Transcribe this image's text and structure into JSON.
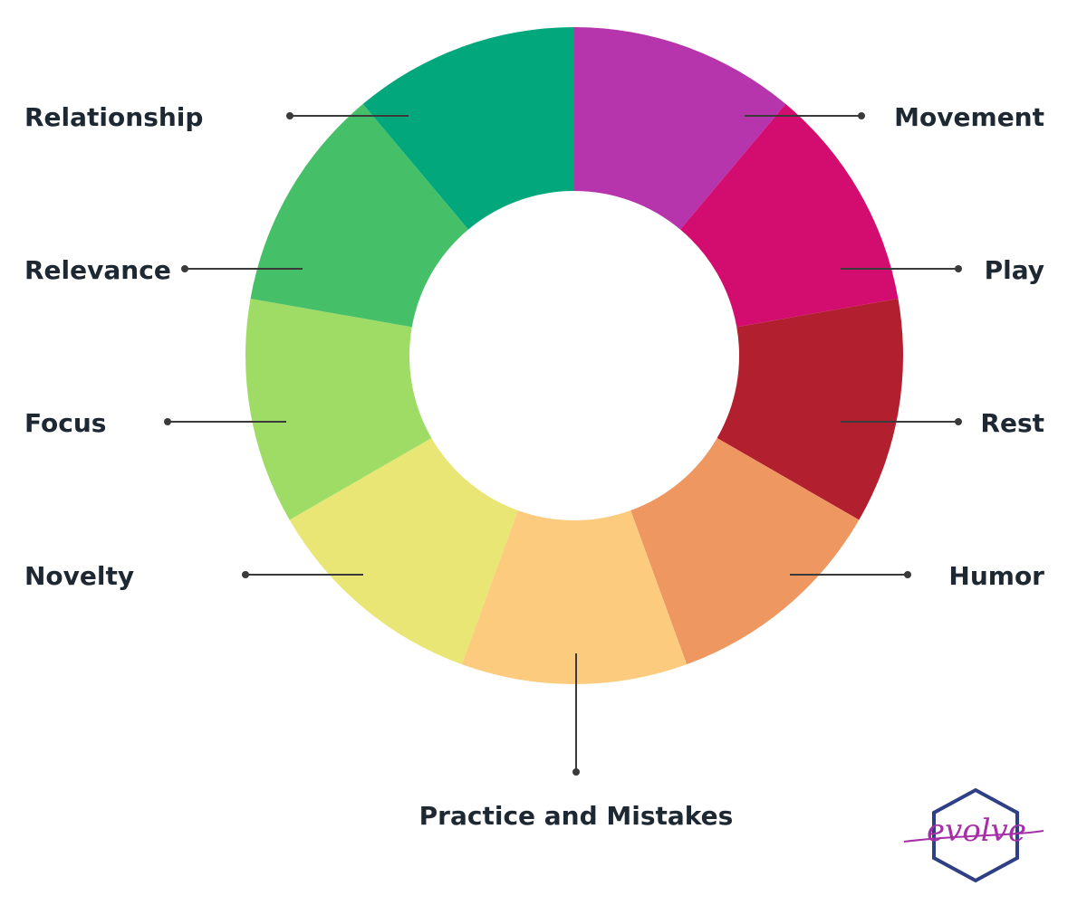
{
  "segments": [
    {
      "label": "Movement",
      "color": "#B634AC",
      "side": "right"
    },
    {
      "label": "Play",
      "color": "#D30D6F",
      "side": "right"
    },
    {
      "label": "Rest",
      "color": "#B21F2F",
      "side": "right"
    },
    {
      "label": "Humor",
      "color": "#EE9760",
      "side": "right"
    },
    {
      "label": "Practice and Mistakes",
      "color": "#FDCB7E",
      "side": "bottom"
    },
    {
      "label": "Novelty",
      "color": "#E9E675",
      "side": "left"
    },
    {
      "label": "Focus",
      "color": "#9FDC65",
      "side": "left"
    },
    {
      "label": "Relevance",
      "color": "#46BF69",
      "side": "left"
    },
    {
      "label": "Relationship",
      "color": "#02A77B",
      "side": "left"
    }
  ],
  "label_color": "#1E2832",
  "leader_color": "#3A3A3A",
  "logo": {
    "text": "evolve",
    "hexagon_color": "#2E3F86",
    "text_color": "#A62FA8"
  }
}
